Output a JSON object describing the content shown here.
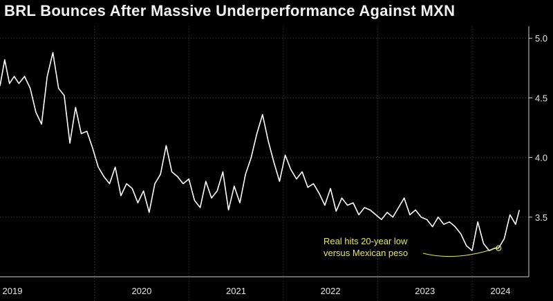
{
  "chart_data": {
    "type": "line",
    "title": "BRL Bounces After Massive Underperformance Against MXN",
    "xlabel": "",
    "ylabel": "",
    "xlim": [
      2019.0,
      2024.6
    ],
    "ylim": [
      3.0,
      5.1
    ],
    "yticks": [
      "5.0",
      "4.5",
      "4.0",
      "3.5"
    ],
    "ytick_values": [
      5.0,
      4.5,
      4.0,
      3.5
    ],
    "xticks": [
      "2019",
      "2020",
      "2021",
      "2022",
      "2023",
      "2024"
    ],
    "grid": true,
    "legend": "none",
    "line_color": "#ffffff",
    "annotation": {
      "lines": [
        "Real hits 20-year low",
        "versus Mexican peso"
      ],
      "color": "#e8e85a",
      "point": {
        "x": 2024.28,
        "y": 3.24
      }
    },
    "series": [
      {
        "x": [
          2019.0,
          2019.05,
          2019.1,
          2019.15,
          2019.2,
          2019.26,
          2019.32,
          2019.38,
          2019.44,
          2019.5,
          2019.56,
          2019.62,
          2019.68,
          2019.74,
          2019.8,
          2019.86,
          2019.92,
          2019.98,
          2020.04,
          2020.1,
          2020.16,
          2020.22,
          2020.28,
          2020.34,
          2020.4,
          2020.46,
          2020.52,
          2020.58,
          2020.64,
          2020.7,
          2020.76,
          2020.82,
          2020.88,
          2020.94,
          2021.0,
          2021.06,
          2021.12,
          2021.18,
          2021.24,
          2021.3,
          2021.36,
          2021.42,
          2021.48,
          2021.54,
          2021.6,
          2021.66,
          2021.72,
          2021.78,
          2021.84,
          2021.9,
          2021.96,
          2022.02,
          2022.08,
          2022.14,
          2022.2,
          2022.26,
          2022.32,
          2022.38,
          2022.44,
          2022.5,
          2022.56,
          2022.62,
          2022.68,
          2022.74,
          2022.8,
          2022.86,
          2022.92,
          2022.98,
          2023.04,
          2023.1,
          2023.16,
          2023.22,
          2023.28,
          2023.34,
          2023.4,
          2023.46,
          2023.52,
          2023.58,
          2023.64,
          2023.7,
          2023.76,
          2023.82,
          2023.88,
          2023.94,
          2024.0,
          2024.06,
          2024.12,
          2024.18,
          2024.24,
          2024.28,
          2024.34,
          2024.4,
          2024.46,
          2024.5
        ],
        "y": [
          4.6,
          4.82,
          4.62,
          4.68,
          4.62,
          4.68,
          4.58,
          4.38,
          4.28,
          4.68,
          4.88,
          4.58,
          4.52,
          4.12,
          4.42,
          4.2,
          4.22,
          4.08,
          3.92,
          3.84,
          3.78,
          3.92,
          3.68,
          3.78,
          3.74,
          3.62,
          3.72,
          3.54,
          3.78,
          3.86,
          4.1,
          3.88,
          3.84,
          3.78,
          3.82,
          3.64,
          3.58,
          3.8,
          3.66,
          3.72,
          3.88,
          3.56,
          3.76,
          3.62,
          3.86,
          4.0,
          4.2,
          4.36,
          4.14,
          3.96,
          3.8,
          4.02,
          3.9,
          3.82,
          3.88,
          3.75,
          3.78,
          3.7,
          3.6,
          3.74,
          3.55,
          3.66,
          3.6,
          3.62,
          3.52,
          3.58,
          3.56,
          3.52,
          3.48,
          3.54,
          3.5,
          3.58,
          3.66,
          3.52,
          3.56,
          3.5,
          3.48,
          3.42,
          3.5,
          3.44,
          3.46,
          3.42,
          3.36,
          3.26,
          3.22,
          3.46,
          3.28,
          3.22,
          3.24,
          3.24,
          3.32,
          3.52,
          3.44,
          3.56
        ]
      }
    ]
  }
}
